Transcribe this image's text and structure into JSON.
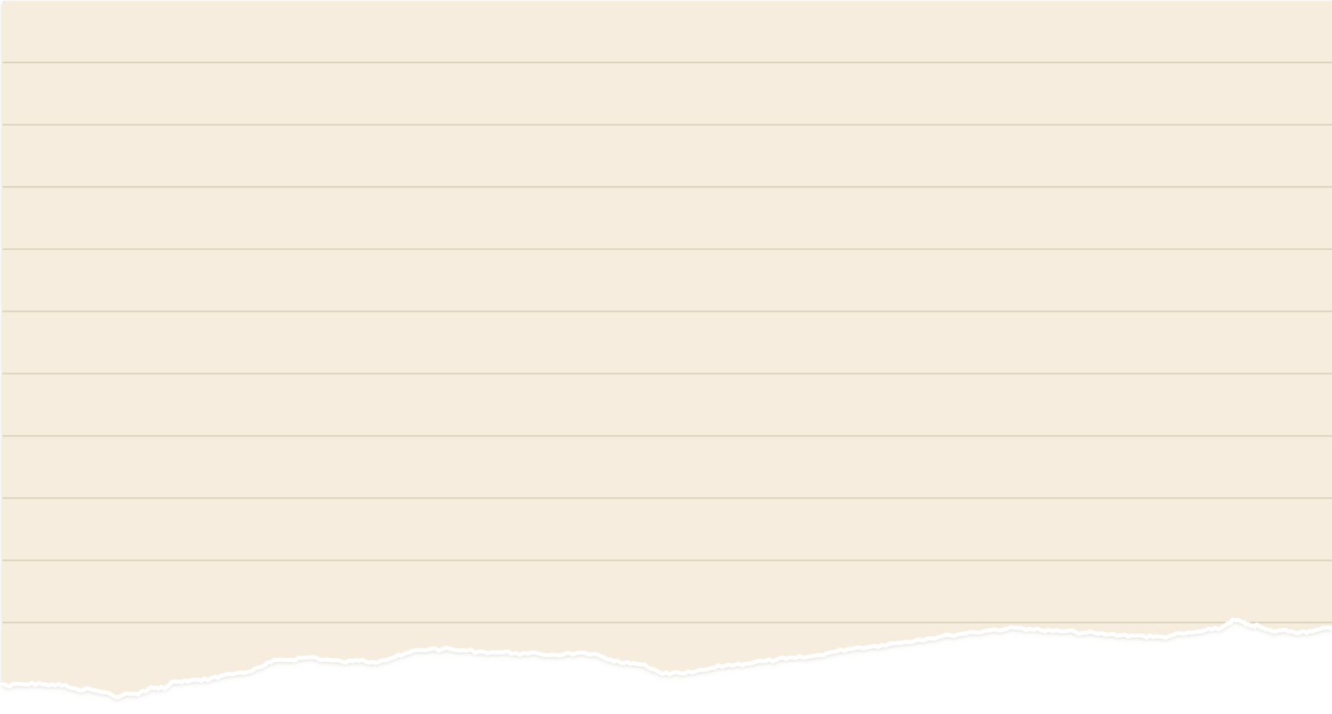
{
  "paper": {
    "color": "#f6eddf",
    "rule_color": "#ddd3bd",
    "edge_color": "#ffffff",
    "shadow_color": "#d8d0c2",
    "ruled_line_count": 10,
    "torn_bottom_edge": true
  }
}
